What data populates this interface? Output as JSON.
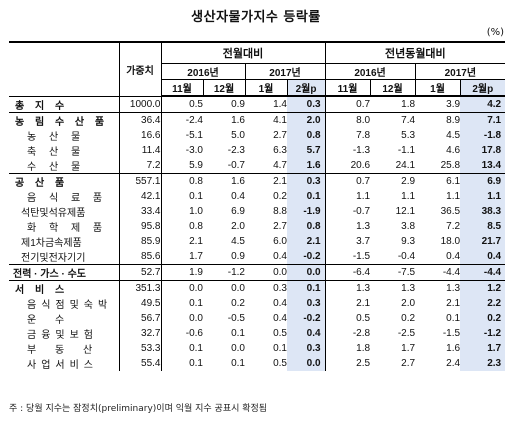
{
  "title": "생산자물가지수 등락률",
  "unit": "(%)",
  "headers": {
    "weight": "가중치",
    "mom": "전월대비",
    "yoy": "전년동월대비",
    "year2016": "2016년",
    "year2017": "2017년",
    "months": [
      "11월",
      "12월",
      "1월",
      "2월p"
    ]
  },
  "rows": [
    {
      "label": "총 지 수",
      "type": "major",
      "weight": "1000.0",
      "mom": [
        "0.5",
        "0.9",
        "1.4",
        "0.3"
      ],
      "yoy": [
        "0.7",
        "1.8",
        "3.9",
        "4.2"
      ]
    },
    {
      "label": "농 림 수 산 품",
      "type": "major",
      "weight": "36.4",
      "mom": [
        "-2.4",
        "1.6",
        "4.1",
        "2.0"
      ],
      "yoy": [
        "8.0",
        "7.4",
        "8.9",
        "7.1"
      ]
    },
    {
      "label": "농 산 물",
      "type": "sub-spaced",
      "weight": "16.6",
      "mom": [
        "-5.1",
        "5.0",
        "2.7",
        "0.8"
      ],
      "yoy": [
        "7.8",
        "5.3",
        "4.5",
        "-1.8"
      ]
    },
    {
      "label": "축 산 물",
      "type": "sub-spaced",
      "weight": "11.4",
      "mom": [
        "-3.0",
        "-2.3",
        "6.3",
        "5.7"
      ],
      "yoy": [
        "-1.3",
        "-1.1",
        "4.6",
        "17.8"
      ]
    },
    {
      "label": "수 산 물",
      "type": "sub-spaced",
      "weight": "7.2",
      "mom": [
        "5.9",
        "-0.7",
        "4.7",
        "1.6"
      ],
      "yoy": [
        "20.6",
        "24.1",
        "25.8",
        "13.4"
      ]
    },
    {
      "label": "공 산 품",
      "type": "major",
      "weight": "557.1",
      "mom": [
        "0.8",
        "1.6",
        "2.1",
        "0.3"
      ],
      "yoy": [
        "0.7",
        "2.9",
        "6.1",
        "6.9"
      ]
    },
    {
      "label": "음 식 료 품",
      "type": "sub-spaced",
      "weight": "42.1",
      "mom": [
        "0.1",
        "0.4",
        "0.2",
        "0.1"
      ],
      "yoy": [
        "1.1",
        "1.1",
        "1.1",
        "1.1"
      ]
    },
    {
      "label": "석탄및석유제품",
      "type": "sub-tight",
      "weight": "33.4",
      "mom": [
        "1.0",
        "6.9",
        "8.8",
        "-1.9"
      ],
      "yoy": [
        "-0.7",
        "12.1",
        "36.5",
        "38.3"
      ]
    },
    {
      "label": "화 학 제 품",
      "type": "sub-spaced",
      "weight": "95.8",
      "mom": [
        "0.8",
        "2.0",
        "2.7",
        "0.8"
      ],
      "yoy": [
        "1.3",
        "3.8",
        "7.2",
        "8.5"
      ]
    },
    {
      "label": "제1차금속제품",
      "type": "sub-tight",
      "weight": "85.9",
      "mom": [
        "2.1",
        "4.5",
        "6.0",
        "2.1"
      ],
      "yoy": [
        "3.7",
        "9.3",
        "18.0",
        "21.7"
      ]
    },
    {
      "label": "전기및전자기기",
      "type": "sub-tight",
      "weight": "85.6",
      "mom": [
        "1.7",
        "0.9",
        "0.4",
        "-0.2"
      ],
      "yoy": [
        "-1.5",
        "-0.4",
        "0.4",
        "0.4"
      ]
    },
    {
      "label": "전력 · 가스 · 수도",
      "type": "major-tight",
      "weight": "52.7",
      "mom": [
        "1.9",
        "-1.2",
        "0.0",
        "0.0"
      ],
      "yoy": [
        "-6.4",
        "-7.5",
        "-4.4",
        "-4.4"
      ]
    },
    {
      "label": "서 비 스",
      "type": "major",
      "weight": "351.3",
      "mom": [
        "0.0",
        "0.0",
        "0.3",
        "0.1"
      ],
      "yoy": [
        "1.3",
        "1.3",
        "1.3",
        "1.2"
      ]
    },
    {
      "label": "음식점및숙박",
      "type": "sub-spaced",
      "weight": "49.5",
      "mom": [
        "0.1",
        "0.2",
        "0.4",
        "0.3"
      ],
      "yoy": [
        "2.1",
        "2.0",
        "2.1",
        "2.2"
      ]
    },
    {
      "label": "운 수",
      "type": "sub-wide",
      "weight": "56.7",
      "mom": [
        "0.0",
        "-0.5",
        "0.4",
        "-0.2"
      ],
      "yoy": [
        "0.5",
        "0.2",
        "0.1",
        "0.2"
      ]
    },
    {
      "label": "금융및보험",
      "type": "sub-spaced",
      "weight": "32.7",
      "mom": [
        "-0.6",
        "0.1",
        "0.5",
        "0.4"
      ],
      "yoy": [
        "-2.8",
        "-2.5",
        "-1.5",
        "-1.2"
      ]
    },
    {
      "label": "부 동 산",
      "type": "sub-wide",
      "weight": "53.3",
      "mom": [
        "0.1",
        "0.0",
        "0.1",
        "0.3"
      ],
      "yoy": [
        "1.8",
        "1.7",
        "1.6",
        "1.7"
      ]
    },
    {
      "label": "사업서비스",
      "type": "sub-spaced",
      "weight": "55.4",
      "mom": [
        "0.1",
        "0.1",
        "0.5",
        "0.0"
      ],
      "yoy": [
        "2.5",
        "2.7",
        "2.4",
        "2.3"
      ]
    }
  ],
  "footnote": "주 : 당월 지수는 잠정치(preliminary)이며 익월 지수 공표시 확정됨"
}
